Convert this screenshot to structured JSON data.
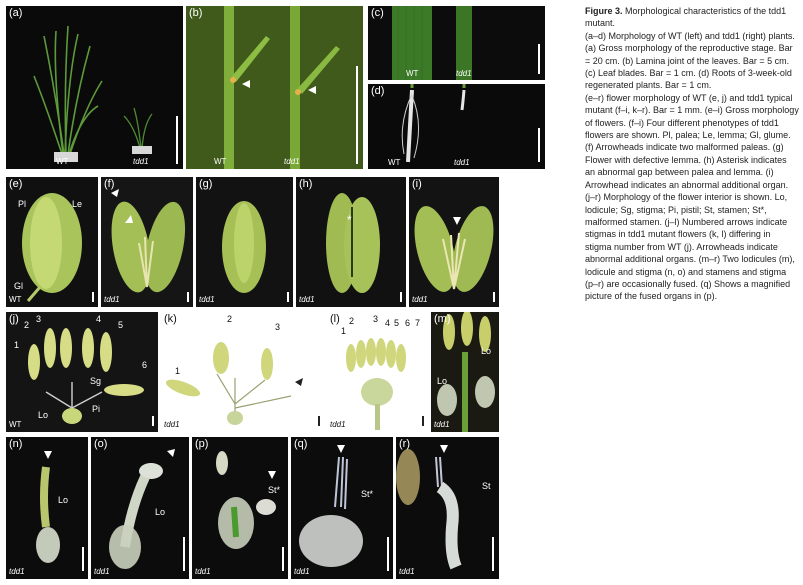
{
  "figure": {
    "caption": {
      "title": "Figure 3.",
      "title_rest": " Morphological characteristics of the tdd1 mutant.",
      "body": [
        "(a–d) Morphology of WT (left) and tdd1 (right) plants. (a) Gross morphology of the reproductive stage. Bar = 20 cm. (b) Lamina joint of the leaves. Bar = 5 cm. (c) Leaf blades. Bar = 1 cm. (d) Roots of 3-week-old regenerated plants. Bar = 1 cm.",
        "(e–r) flower morphology of WT (e, j) and tdd1 typical mutant (f–i, k–r). Bar = 1 mm. (e–i) Gross morphology of flowers. (f–i) Four different phenotypes of tdd1 flowers are shown. Pl, palea; Le, lemma; Gl, glume. (f) Arrowheads indicate two malformed paleas. (g) Flower with defective lemma. (h) Asterisk indicates an abnormal gap between palea and lemma. (i) Arrowhead indicates an abnormal additional organ. (j–r) Morphology of the flower interior is shown. Lo, lodicule; Sg, stigma; Pi, pistil; St, stamen; St*, malformed stamen. (j–l) Numbered arrows indicate stigmas in tdd1 mutant flowers (k, l) differing in stigma number from WT (j). Arrowheads indicate abnormal additional organs. (m–r) Two lodicules (m), lodicule and stigma (n, o) and stamens and stigma (p–r) are occasionally fused. (q) Shows a magnified picture of the fused organs in (p)."
      ]
    },
    "panels": {
      "a": {
        "label": "(a)",
        "wt": "WT",
        "mut": "tdd1"
      },
      "b": {
        "label": "(b)",
        "wt": "WT",
        "mut": "tdd1"
      },
      "c": {
        "label": "(c)",
        "wt": "WT",
        "mut": "tdd1"
      },
      "d": {
        "label": "(d)",
        "wt": "WT",
        "mut": "tdd1"
      },
      "e": {
        "label": "(e)",
        "geno": "WT",
        "pl": "Pl",
        "le": "Le",
        "gl": "Gl"
      },
      "f": {
        "label": "(f)",
        "geno": "tdd1"
      },
      "g": {
        "label": "(g)",
        "geno": "tdd1"
      },
      "h": {
        "label": "(h)",
        "geno": "tdd1",
        "asterisk": "*"
      },
      "i": {
        "label": "(i)",
        "geno": "tdd1"
      },
      "j": {
        "label": "(j)",
        "geno": "WT",
        "nums": [
          "1",
          "2",
          "3",
          "4",
          "5",
          "6"
        ],
        "sg": "Sg",
        "pi": "Pi",
        "lo": "Lo"
      },
      "k": {
        "label": "(k)",
        "geno": "tdd1",
        "nums": [
          "1",
          "2",
          "3"
        ]
      },
      "l": {
        "label": "(l)",
        "geno": "tdd1",
        "nums": [
          "1",
          "2",
          "3",
          "4",
          "5",
          "6",
          "7"
        ]
      },
      "m": {
        "label": "(m)",
        "geno": "tdd1",
        "lo1": "Lo",
        "lo2": "Lo"
      },
      "n": {
        "label": "(n)",
        "geno": "tdd1",
        "lo": "Lo"
      },
      "o": {
        "label": "(o)",
        "geno": "tdd1",
        "lo": "Lo"
      },
      "p": {
        "label": "(p)",
        "geno": "tdd1",
        "st": "St*"
      },
      "q": {
        "label": "(q)",
        "geno": "tdd1",
        "st": "St*"
      },
      "r": {
        "label": "(r)",
        "geno": "tdd1",
        "st": "St"
      }
    }
  }
}
